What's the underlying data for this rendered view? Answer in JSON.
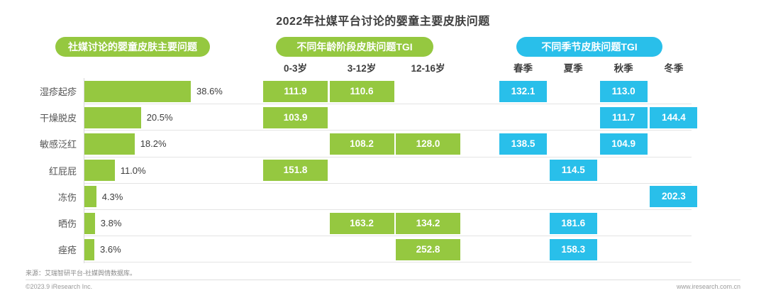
{
  "title": "2022年社媒平台讨论的婴童主要皮肤问题",
  "panels": {
    "left_pill": "社媒讨论的婴童皮肤主要问题",
    "mid_pill": "不同年龄阶段皮肤问题TGI",
    "right_pill": "不同季节皮肤问题TGI"
  },
  "colors": {
    "green": "#95C840",
    "blue": "#29BFEA"
  },
  "age_columns": [
    "0-3岁",
    "3-12岁",
    "12-16岁"
  ],
  "season_columns": [
    "春季",
    "夏季",
    "秋季",
    "冬季"
  ],
  "rows": [
    {
      "label": "湿疹起疹",
      "pct": 38.6,
      "pct_label": "38.6%",
      "age": [
        111.9,
        110.6,
        null
      ],
      "season": [
        132.1,
        null,
        113.0,
        null
      ]
    },
    {
      "label": "干燥脱皮",
      "pct": 20.5,
      "pct_label": "20.5%",
      "age": [
        103.9,
        null,
        null
      ],
      "season": [
        null,
        null,
        111.7,
        144.4
      ]
    },
    {
      "label": "敏感泛红",
      "pct": 18.2,
      "pct_label": "18.2%",
      "age": [
        null,
        108.2,
        128.0
      ],
      "season": [
        138.5,
        null,
        104.9,
        null
      ]
    },
    {
      "label": "红屁屁",
      "pct": 11.0,
      "pct_label": "11.0%",
      "age": [
        151.8,
        null,
        null
      ],
      "season": [
        null,
        114.5,
        null,
        null
      ]
    },
    {
      "label": "冻伤",
      "pct": 4.3,
      "pct_label": "4.3%",
      "age": [
        null,
        null,
        null
      ],
      "season": [
        null,
        null,
        null,
        202.3
      ]
    },
    {
      "label": "晒伤",
      "pct": 3.8,
      "pct_label": "3.8%",
      "age": [
        null,
        163.2,
        134.2
      ],
      "season": [
        null,
        181.6,
        null,
        null
      ]
    },
    {
      "label": "痤疮",
      "pct": 3.6,
      "pct_label": "3.6%",
      "age": [
        null,
        null,
        252.8
      ],
      "season": [
        null,
        158.3,
        null,
        null
      ]
    }
  ],
  "footer": {
    "source": "来源：艾瑞智研平台-社媒舆情数据库。",
    "copyright": "©2023.9 iResearch Inc.",
    "website": "www.iresearch.com.cn"
  },
  "chart_data": {
    "type": "bar",
    "title": "2022年社媒平台讨论的婴童主要皮肤问题",
    "categories": [
      "湿疹起疹",
      "干燥脱皮",
      "敏感泛红",
      "红屁屁",
      "冻伤",
      "晒伤",
      "痤疮"
    ],
    "series": [
      {
        "name": "社媒讨论占比(%)",
        "values": [
          38.6,
          20.5,
          18.2,
          11.0,
          4.3,
          3.8,
          3.6
        ]
      },
      {
        "name": "0-3岁皮肤问题TGI",
        "values": [
          111.9,
          103.9,
          null,
          151.8,
          null,
          null,
          null
        ]
      },
      {
        "name": "3-12岁皮肤问题TGI",
        "values": [
          110.6,
          null,
          108.2,
          null,
          null,
          163.2,
          null
        ]
      },
      {
        "name": "12-16岁皮肤问题TGI",
        "values": [
          null,
          null,
          128.0,
          null,
          null,
          134.2,
          252.8
        ]
      },
      {
        "name": "春季皮肤问题TGI",
        "values": [
          132.1,
          null,
          138.5,
          null,
          null,
          null,
          null
        ]
      },
      {
        "name": "夏季皮肤问题TGI",
        "values": [
          null,
          null,
          null,
          114.5,
          null,
          181.6,
          158.3
        ]
      },
      {
        "name": "秋季皮肤问题TGI",
        "values": [
          113.0,
          111.7,
          104.9,
          null,
          null,
          null,
          null
        ]
      },
      {
        "name": "冬季皮肤问题TGI",
        "values": [
          null,
          144.4,
          null,
          null,
          202.3,
          null,
          null
        ]
      }
    ],
    "orientation": "horizontal",
    "grid": "horizontal-row-separators",
    "legend_position": "none",
    "xlabel": "",
    "ylabel": "",
    "notes": "左侧横向条形图为社媒讨论占比；中部绿色单元格为不同年龄段TGI；右侧蓝色单元格为不同季节TGI"
  }
}
